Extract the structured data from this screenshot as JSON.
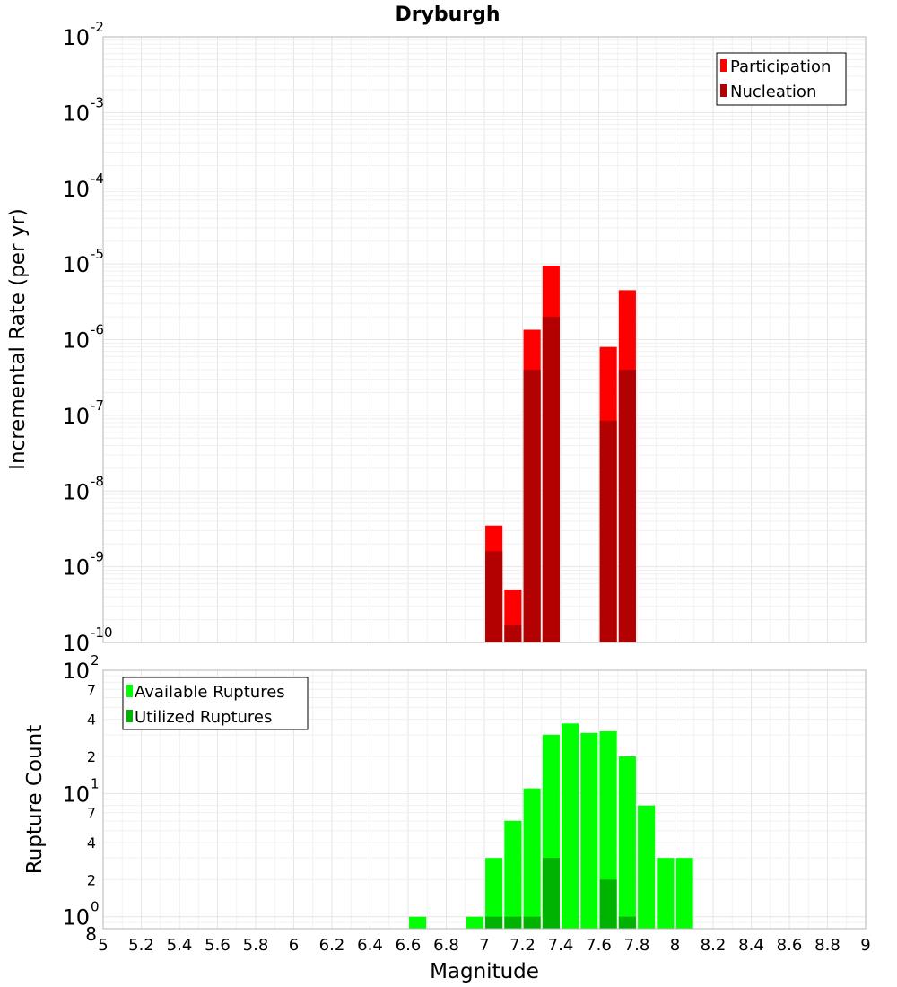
{
  "title": "Dryburgh",
  "xlabel": "Magnitude",
  "colors": {
    "participation": "#ff0000",
    "nucleation": "#b30000",
    "available": "#00ff00",
    "utilized": "#00b300",
    "grid": "#e6e6e6",
    "frame": "#b4b4b4"
  },
  "chart_data": [
    {
      "type": "bar",
      "panel": "top",
      "title": "Dryburgh",
      "ylabel": "Incremental Rate (per yr)",
      "yscale": "log",
      "ylim": [
        1e-10,
        0.01
      ],
      "xlim": [
        5,
        9
      ],
      "x_ticks": [
        "5",
        "5.2",
        "5.4",
        "5.6",
        "5.8",
        "6",
        "6.2",
        "6.4",
        "6.6",
        "6.8",
        "7",
        "7.2",
        "7.4",
        "7.6",
        "7.8",
        "8",
        "8.2",
        "8.4",
        "8.6",
        "8.8",
        "9"
      ],
      "y_ticks": [
        {
          "base": "10",
          "exp": "-2"
        },
        {
          "base": "10",
          "exp": "-3"
        },
        {
          "base": "10",
          "exp": "-4"
        },
        {
          "base": "10",
          "exp": "-5"
        },
        {
          "base": "10",
          "exp": "-6"
        },
        {
          "base": "10",
          "exp": "-7"
        },
        {
          "base": "10",
          "exp": "-8"
        },
        {
          "base": "10",
          "exp": "-9"
        },
        {
          "base": "10",
          "exp": "-10"
        }
      ],
      "legend": {
        "position": "top-right"
      },
      "x": [
        7.05,
        7.15,
        7.25,
        7.35,
        7.65,
        7.75
      ],
      "series": [
        {
          "name": "Participation",
          "values": [
            3.5e-09,
            5e-10,
            1.35e-06,
            9.5e-06,
            8e-07,
            4.5e-06
          ]
        },
        {
          "name": "Nucleation",
          "values": [
            1.6e-09,
            1.7e-10,
            4e-07,
            2e-06,
            8.5e-08,
            4e-07
          ]
        }
      ]
    },
    {
      "type": "bar",
      "panel": "bottom",
      "ylabel": "Rupture Count",
      "yscale": "log",
      "ylim": [
        0.8,
        100
      ],
      "xlim": [
        5,
        9
      ],
      "y_ticks": [
        {
          "base": "10",
          "exp": "2"
        },
        {
          "label": "7"
        },
        {
          "label": "4"
        },
        {
          "label": "2"
        },
        {
          "base": "10",
          "exp": "1"
        },
        {
          "label": "7"
        },
        {
          "label": "4"
        },
        {
          "label": "2"
        },
        {
          "base": "10",
          "exp": "0"
        },
        {
          "label": "8"
        }
      ],
      "legend": {
        "position": "top-left"
      },
      "x": [
        6.65,
        6.75,
        6.85,
        6.95,
        7.05,
        7.15,
        7.25,
        7.35,
        7.45,
        7.55,
        7.65,
        7.75,
        7.85,
        7.95,
        8.05
      ],
      "series": [
        {
          "name": "Available Ruptures",
          "values": [
            1,
            0,
            0,
            1,
            3,
            6,
            11,
            30,
            37,
            31,
            32,
            20,
            8,
            3,
            3
          ]
        },
        {
          "name": "Utilized Ruptures",
          "values": [
            0,
            0,
            0,
            0,
            1,
            1,
            1,
            3,
            0,
            0,
            2,
            1,
            0,
            0,
            0
          ]
        }
      ]
    }
  ]
}
